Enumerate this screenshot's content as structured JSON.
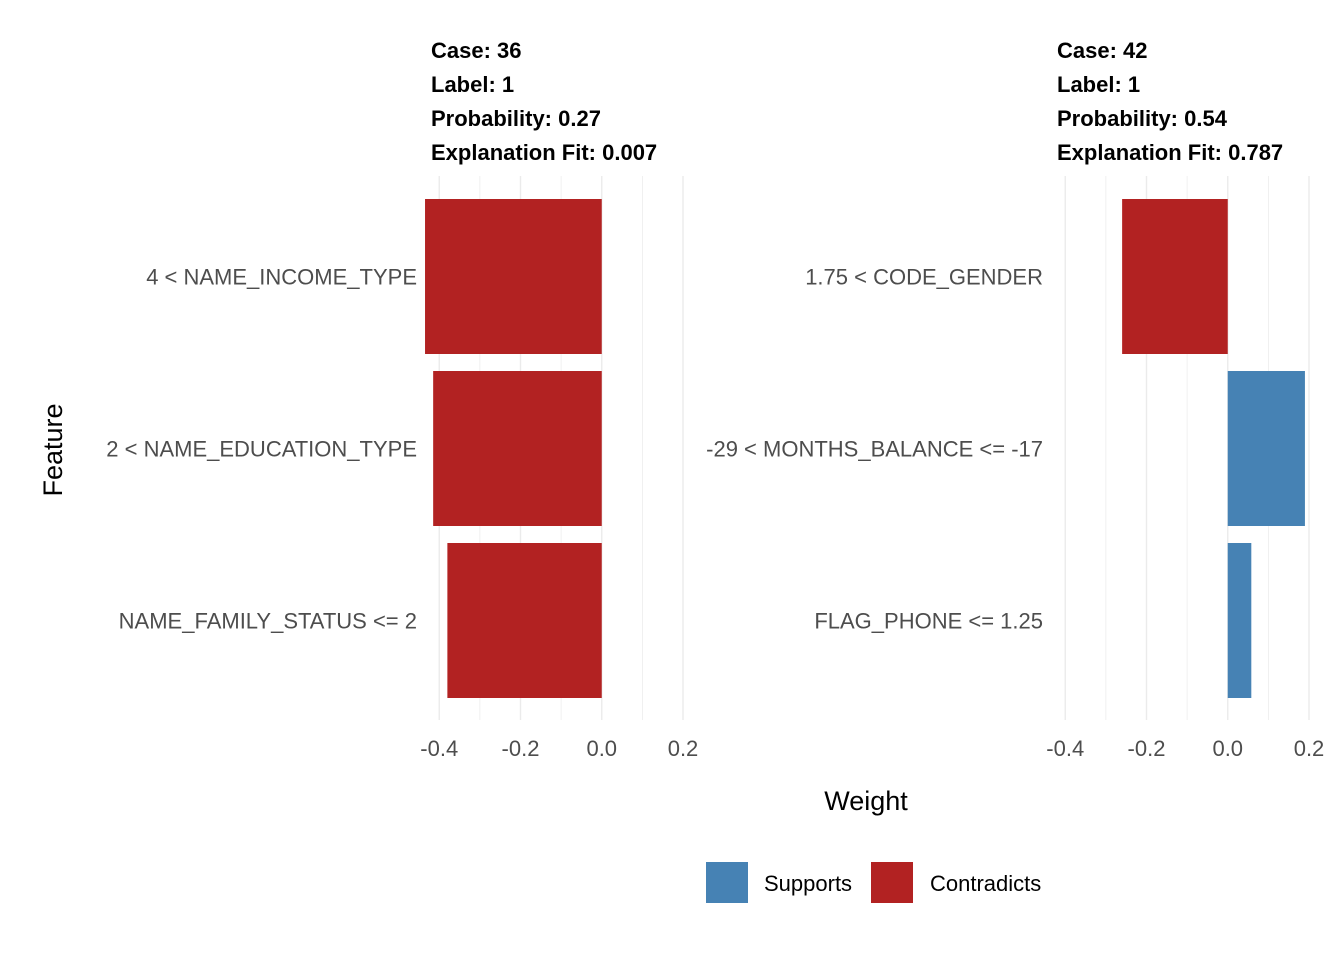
{
  "chart_data": {
    "type": "bar",
    "orientation": "horizontal",
    "xlabel": "Weight",
    "ylabel": "Feature",
    "xlim": [
      -0.44,
      0.2
    ],
    "xticks": [
      -0.4,
      -0.2,
      0.0,
      0.2
    ],
    "xtick_labels": [
      "-0.4",
      "-0.2",
      "0.0",
      "0.2"
    ],
    "grid": true,
    "legend": {
      "position": "bottom",
      "entries": [
        {
          "label": "Supports",
          "color": "#4682b4"
        },
        {
          "label": "Contradicts",
          "color": "#b22222"
        }
      ]
    },
    "colors": {
      "Supports": "#4682b4",
      "Contradicts": "#b22222"
    },
    "panels": [
      {
        "header": [
          "Case: 36",
          "Label: 1",
          "Probability: 0.27",
          "Explanation Fit: 0.007"
        ],
        "features": [
          "4 < NAME_INCOME_TYPE",
          "2 < NAME_EDUCATION_TYPE",
          "NAME_FAMILY_STATUS <= 2"
        ],
        "values": [
          -0.435,
          -0.415,
          -0.38
        ],
        "types": [
          "Contradicts",
          "Contradicts",
          "Contradicts"
        ]
      },
      {
        "header": [
          "Case: 42",
          "Label: 1",
          "Probability: 0.54",
          "Explanation Fit: 0.787"
        ],
        "features": [
          "1.75 < CODE_GENDER",
          "-29 < MONTHS_BALANCE <= -17",
          "FLAG_PHONE <= 1.25"
        ],
        "values": [
          -0.26,
          0.19,
          0.058
        ],
        "types": [
          "Contradicts",
          "Supports",
          "Supports"
        ]
      }
    ]
  }
}
